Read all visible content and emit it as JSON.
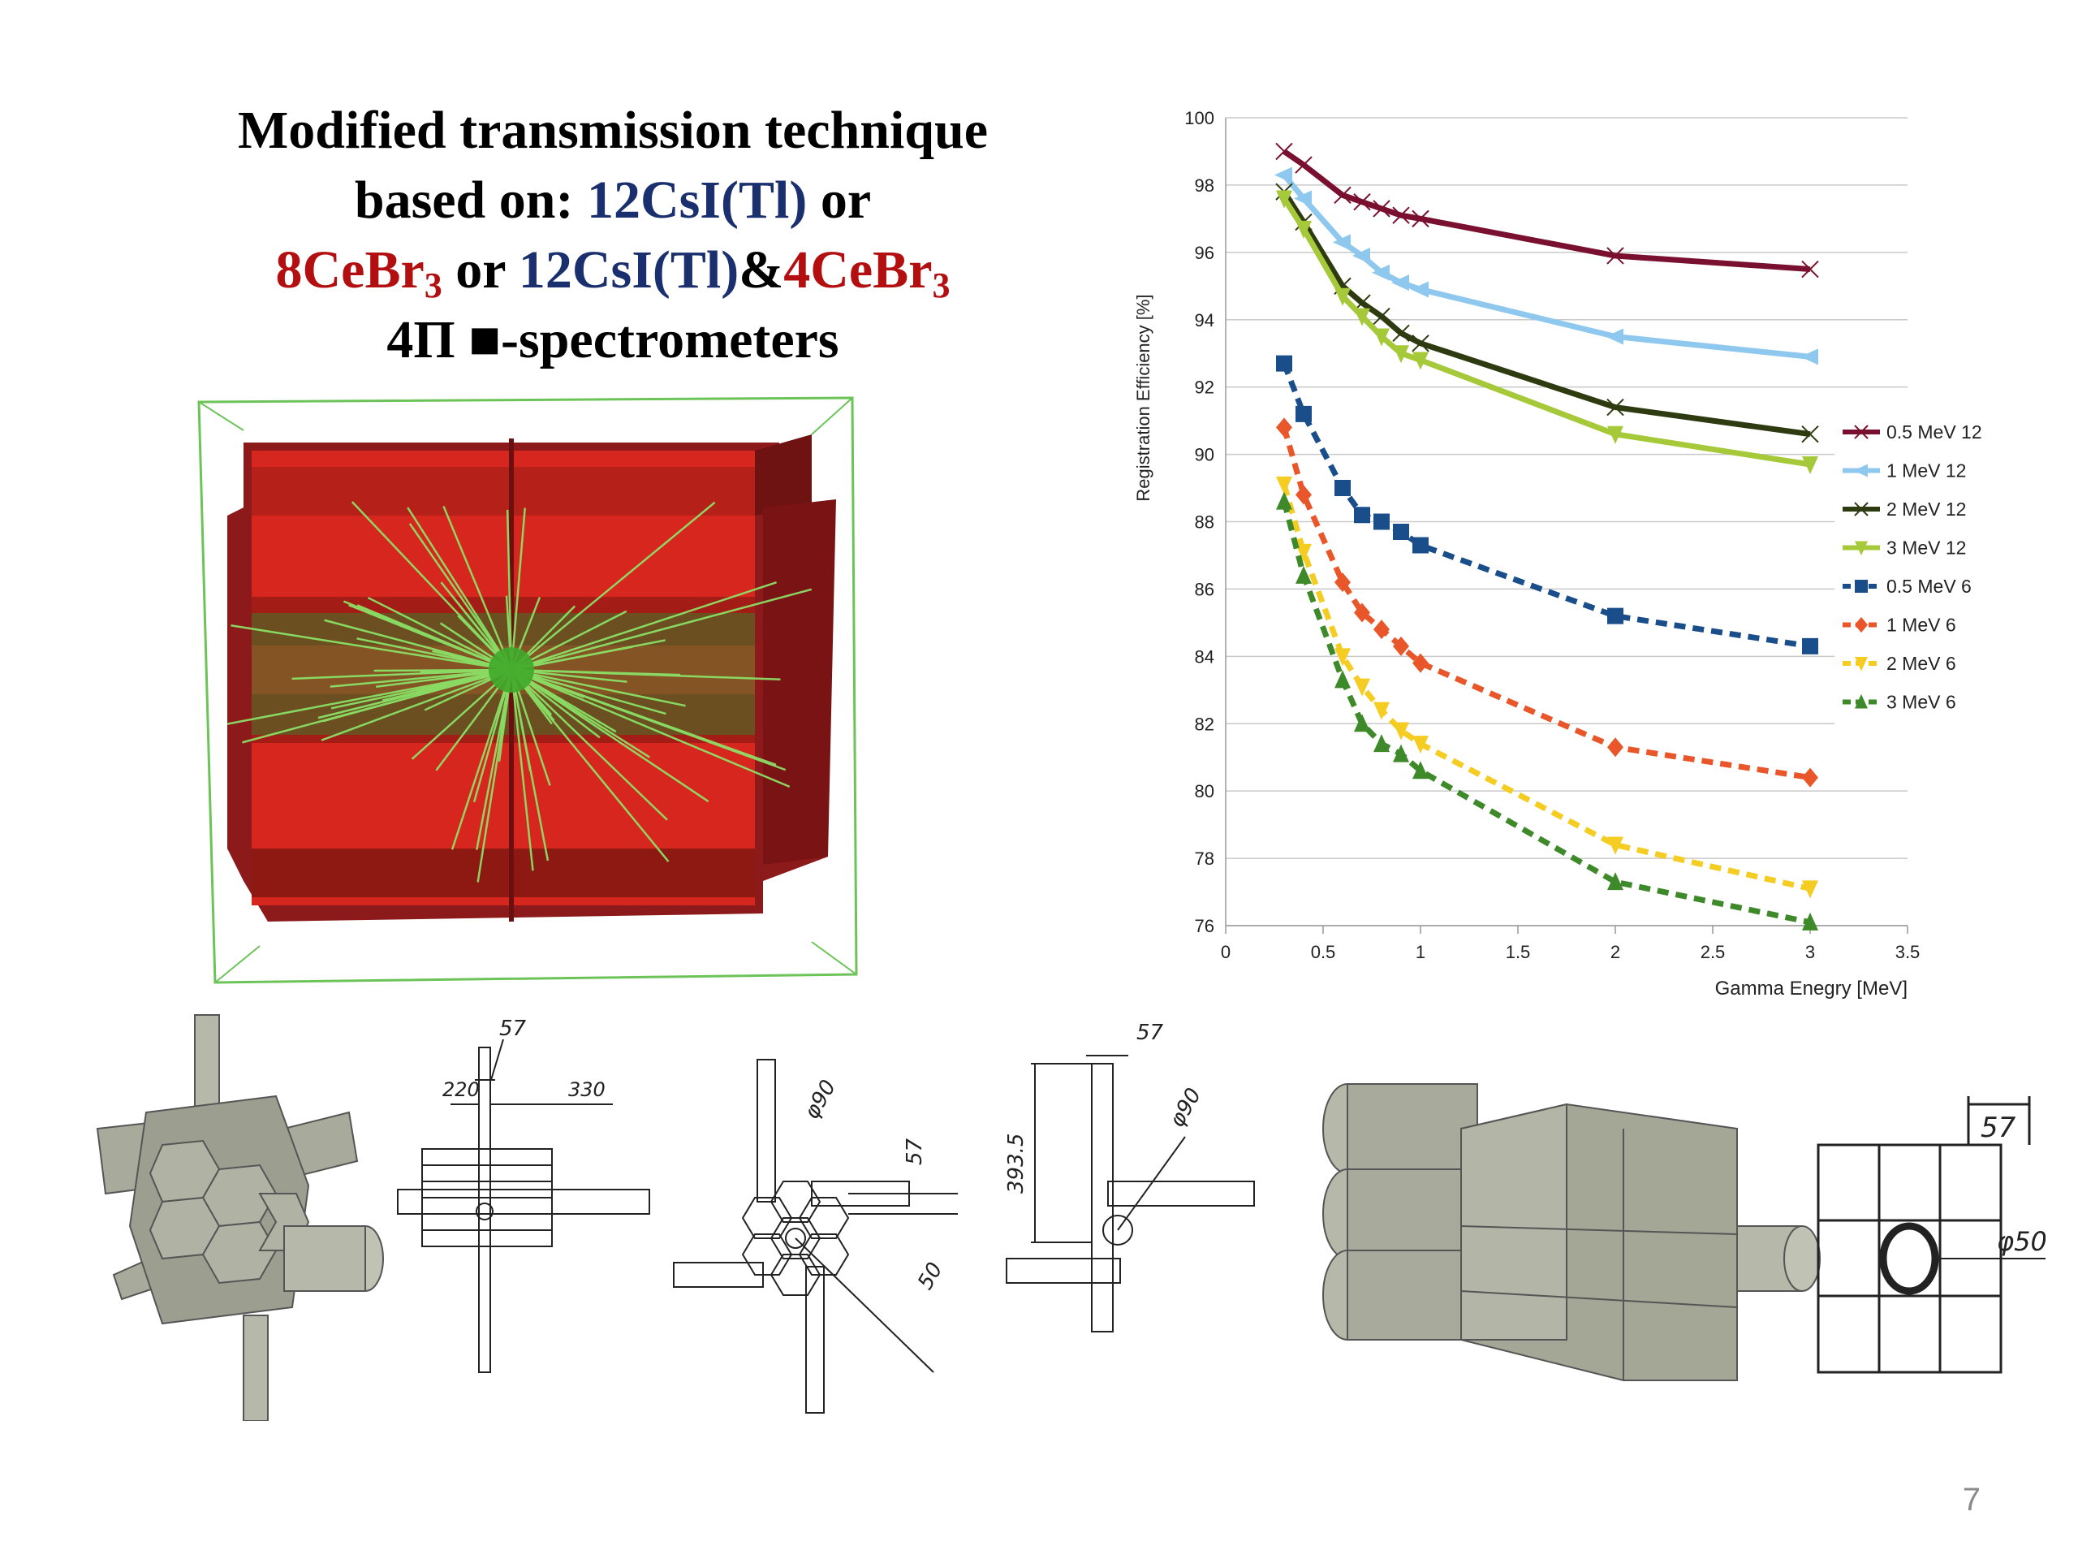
{
  "title": {
    "line1": "Modified transmission technique",
    "line2_prefix": "based on: ",
    "line2_blue": "12CsI(Tl)",
    "line2_suffix": " or",
    "line3_red1": "8CeBr",
    "line3_red1_sub": "3",
    "line3_mid": " or ",
    "line3_blue": "12CsI(Tl)",
    "line3_amp": "&",
    "line3_red2": "4CeBr",
    "line3_red2_sub": "3",
    "line4": "4Π ■-spectrometers"
  },
  "page_number": "7",
  "colors": {
    "title_blue": "#1a2f6e",
    "title_red": "#b40f10",
    "sim_red": "#c41a1a",
    "sim_green": "#5fd33a"
  },
  "drawing_labels": {
    "d57a": "57",
    "d220": "220",
    "d330": "330",
    "d90a": "φ90",
    "d57b": "57",
    "d50a": "50",
    "d57c": "57",
    "d3935": "393.5",
    "d90b": "φ90",
    "d57d": "57",
    "d50b": "φ50"
  },
  "chart_data": {
    "type": "line",
    "xlabel": "Gamma Enegry [MeV]",
    "ylabel": "Registration Efficiency [%]",
    "xlim": [
      0,
      3.5
    ],
    "ylim": [
      76,
      100
    ],
    "xticks": [
      0,
      0.5,
      1,
      1.5,
      2,
      2.5,
      3,
      3.5
    ],
    "xtick_labels": [
      "0",
      "0.5",
      "1",
      "1.5",
      "2",
      "2.5",
      "3",
      "3.5"
    ],
    "yticks": [
      76,
      78,
      80,
      82,
      84,
      86,
      88,
      90,
      92,
      94,
      96,
      98,
      100
    ],
    "grid": true,
    "legend_position": "right",
    "series": [
      {
        "name": "0.5 MeV 12",
        "color": "#7a1030",
        "dash": false,
        "marker": "bowtie",
        "x": [
          0.3,
          0.4,
          0.6,
          0.7,
          0.8,
          0.9,
          1,
          2,
          3
        ],
        "y": [
          99.0,
          98.6,
          97.7,
          97.5,
          97.3,
          97.1,
          97.0,
          95.9,
          95.5
        ]
      },
      {
        "name": "1 MeV 12",
        "color": "#8ec8ee",
        "dash": false,
        "marker": "triangle-left",
        "x": [
          0.3,
          0.4,
          0.6,
          0.7,
          0.8,
          0.9,
          1,
          2,
          3
        ],
        "y": [
          98.3,
          97.6,
          96.3,
          95.9,
          95.4,
          95.1,
          94.9,
          93.5,
          92.9
        ]
      },
      {
        "name": "2 MeV 12",
        "color": "#2e3a10",
        "dash": false,
        "marker": "bowtie",
        "x": [
          0.3,
          0.4,
          0.6,
          0.7,
          0.8,
          0.9,
          1,
          2,
          3
        ],
        "y": [
          97.8,
          96.9,
          95.0,
          94.5,
          94.1,
          93.6,
          93.3,
          91.4,
          90.6
        ]
      },
      {
        "name": "3 MeV 12",
        "color": "#a6c93a",
        "dash": false,
        "marker": "triangle-down",
        "x": [
          0.3,
          0.4,
          0.6,
          0.7,
          0.8,
          0.9,
          1,
          2,
          3
        ],
        "y": [
          97.6,
          96.7,
          94.7,
          94.1,
          93.5,
          93.0,
          92.8,
          90.6,
          89.7
        ]
      },
      {
        "name": "0.5 MeV 6",
        "color": "#1a4e8a",
        "dash": true,
        "marker": "square",
        "x": [
          0.3,
          0.4,
          0.6,
          0.7,
          0.8,
          0.9,
          1,
          2,
          3
        ],
        "y": [
          92.7,
          91.2,
          89.0,
          88.2,
          88.0,
          87.7,
          87.3,
          85.2,
          84.3
        ]
      },
      {
        "name": "1 MeV 6",
        "color": "#e8562a",
        "dash": true,
        "marker": "diamond",
        "x": [
          0.3,
          0.4,
          0.6,
          0.7,
          0.8,
          0.9,
          1,
          2,
          3
        ],
        "y": [
          90.8,
          88.8,
          86.2,
          85.3,
          84.8,
          84.3,
          83.8,
          81.3,
          80.4
        ]
      },
      {
        "name": "2 MeV 6",
        "color": "#f4cc22",
        "dash": true,
        "marker": "triangle-down",
        "x": [
          0.3,
          0.4,
          0.6,
          0.7,
          0.8,
          0.9,
          1,
          2,
          3
        ],
        "y": [
          89.1,
          87.1,
          84.0,
          83.1,
          82.4,
          81.8,
          81.4,
          78.4,
          77.1
        ]
      },
      {
        "name": "3 MeV 6",
        "color": "#3e8a2a",
        "dash": true,
        "marker": "triangle-up",
        "x": [
          0.3,
          0.4,
          0.6,
          0.7,
          0.8,
          0.9,
          1,
          2,
          3
        ],
        "y": [
          88.6,
          86.4,
          83.3,
          82.0,
          81.4,
          81.1,
          80.6,
          77.3,
          76.1
        ]
      }
    ]
  }
}
